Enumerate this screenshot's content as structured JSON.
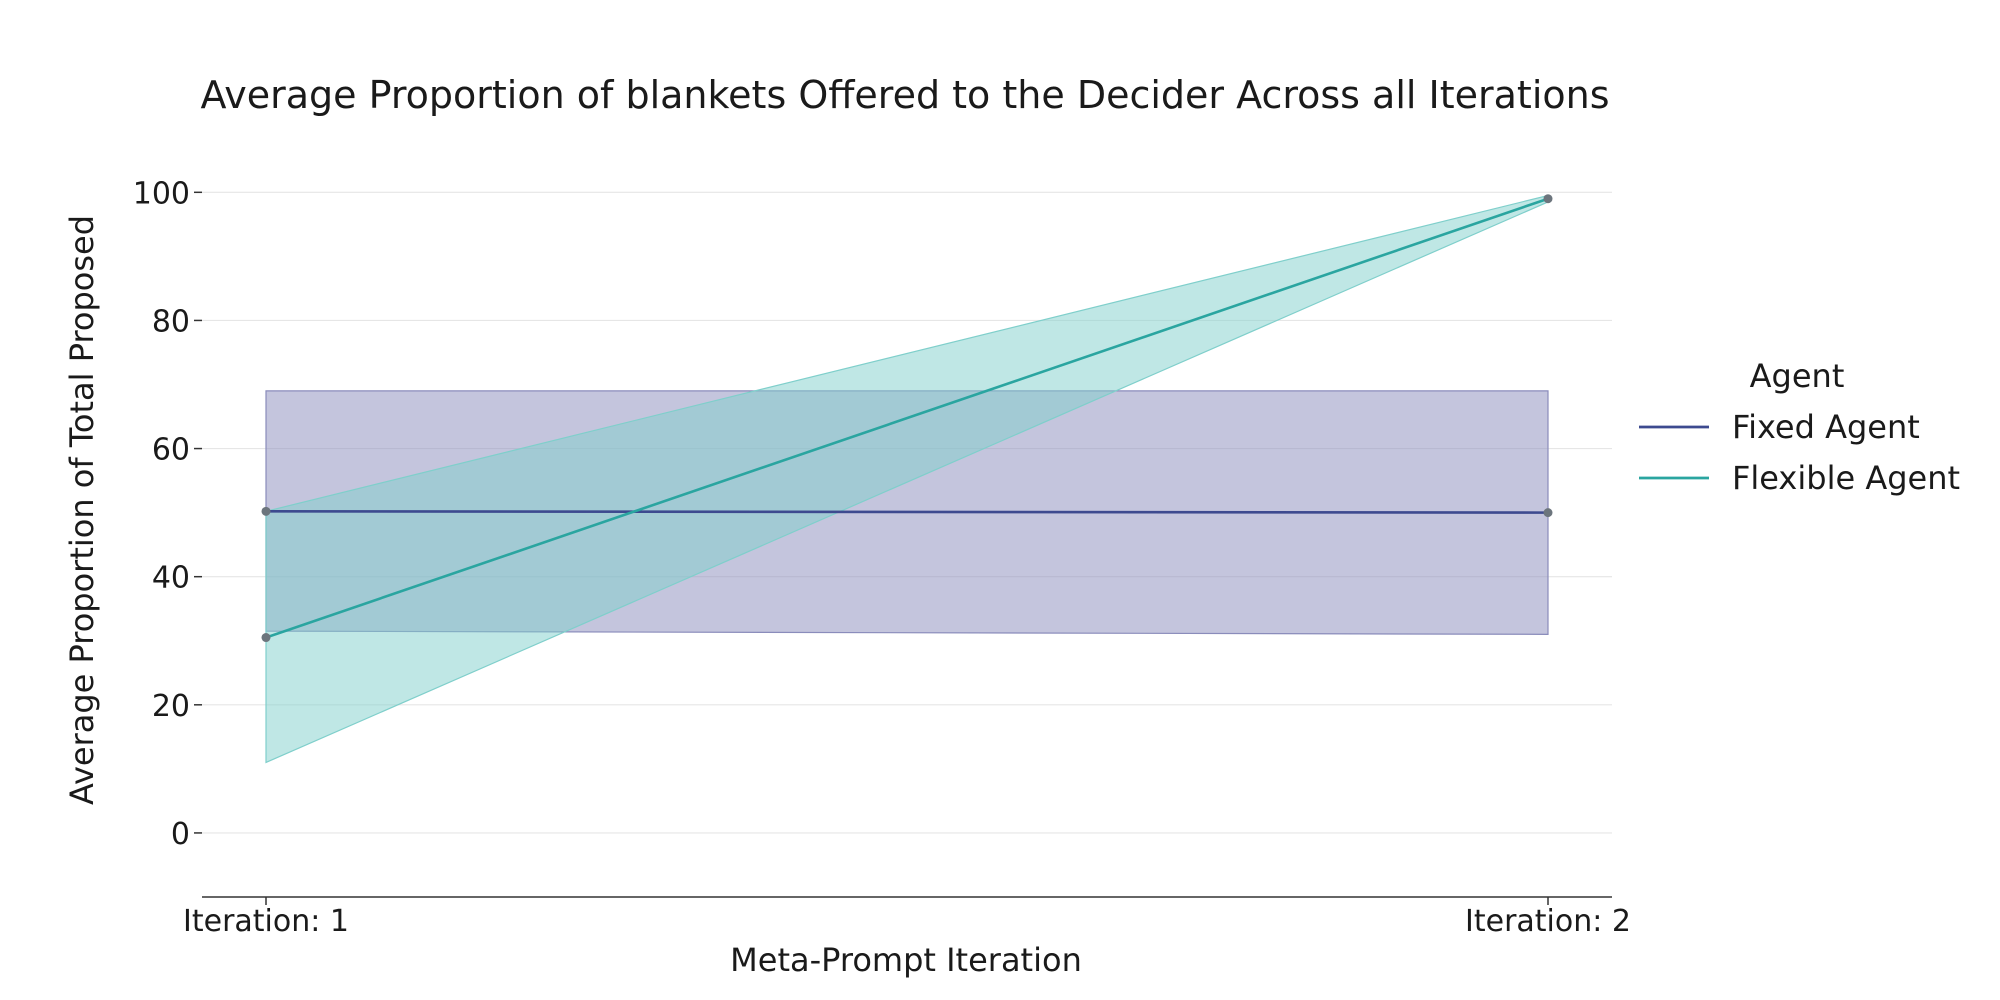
{
  "chart_data": {
    "type": "line",
    "title": "Average Proportion of blankets Offered to the Decider Across all Iterations",
    "xlabel": "Meta-Prompt Iteration",
    "ylabel": "Average Proportion of Total Proposed",
    "categories": [
      "Iteration: 1",
      "Iteration: 2"
    ],
    "ylim": [
      -10,
      102
    ],
    "yticks": [
      0,
      20,
      40,
      60,
      80,
      100
    ],
    "grid": true,
    "legend": {
      "title": "Agent",
      "placement": "right"
    },
    "series": [
      {
        "name": "Fixed Agent",
        "color": "#3d4a8f",
        "band_color": "#8a8cbb",
        "values": [
          50.2,
          50.0
        ],
        "lower": [
          31.5,
          31.0
        ],
        "upper": [
          69.0,
          69.0
        ]
      },
      {
        "name": "Flexible Agent",
        "color": "#2aa5a0",
        "band_color": "#7fcfcb",
        "values": [
          30.5,
          99.0
        ],
        "lower": [
          11.0,
          98.5
        ],
        "upper": [
          50.2,
          99.5
        ]
      }
    ],
    "marker_color": "#6c757d"
  }
}
